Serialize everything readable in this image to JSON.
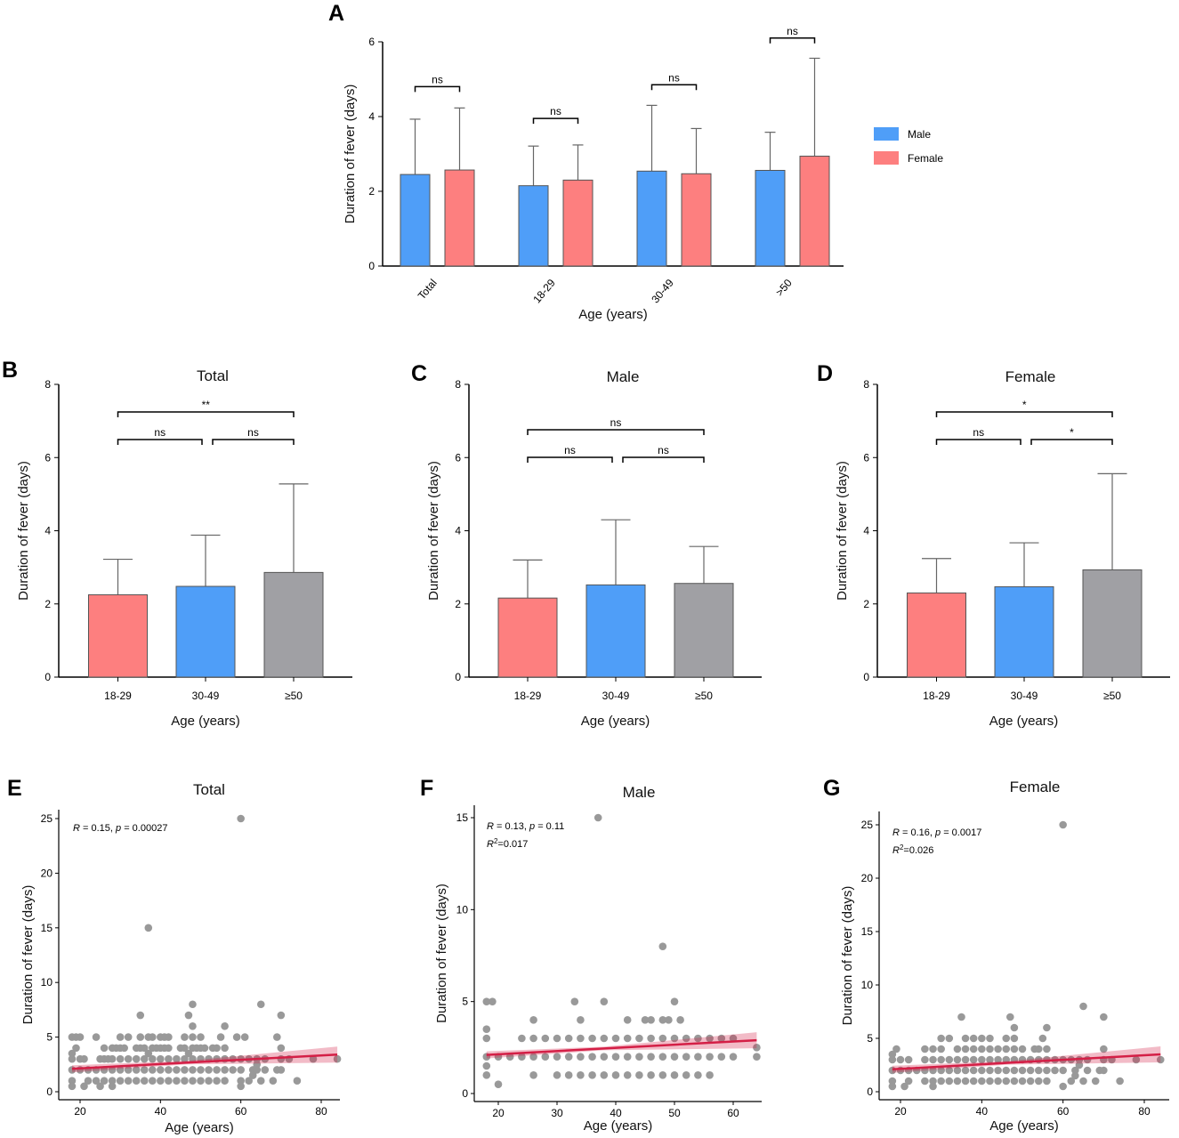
{
  "chart_data": [
    {
      "panel_label": "A",
      "type": "bar",
      "title": "",
      "xlabel": "Age (years)",
      "ylabel": "Duration of fever (days)",
      "ylim": [
        0,
        6
      ],
      "yticks": [
        "0",
        "2",
        "4",
        "6"
      ],
      "categories": [
        "Total",
        "18-29",
        "30-49",
        ">50"
      ],
      "series": [
        {
          "name": "Male",
          "color": "#4f9ef8",
          "values": [
            2.45,
            2.15,
            2.54,
            2.56
          ],
          "error_upper": [
            3.93,
            3.21,
            4.3,
            3.58
          ]
        },
        {
          "name": "Female",
          "color": "#fd7f7f",
          "values": [
            2.57,
            2.3,
            2.47,
            2.94
          ],
          "error_upper": [
            4.23,
            3.24,
            3.68,
            5.56
          ]
        }
      ],
      "comparisons": [
        {
          "category": 0,
          "label": "ns"
        },
        {
          "category": 1,
          "label": "ns"
        },
        {
          "category": 2,
          "label": "ns"
        },
        {
          "category": 3,
          "label": "ns"
        }
      ],
      "legend": "right"
    },
    {
      "panel_label": "B",
      "type": "bar",
      "title": "Total",
      "xlabel": "Age (years)",
      "ylabel": "Duration of fever (days)",
      "ylim": [
        0,
        8
      ],
      "yticks": [
        "0",
        "2",
        "4",
        "6",
        "8"
      ],
      "categories": [
        "18-29",
        "30-49",
        "≥50"
      ],
      "values": [
        2.25,
        2.48,
        2.86
      ],
      "error_upper": [
        3.22,
        3.88,
        5.28
      ],
      "colors": [
        "#fd7f7f",
        "#4f9ef8",
        "#a0a0a4"
      ],
      "comparisons": [
        {
          "from": 0,
          "to": 1,
          "label": "ns"
        },
        {
          "from": 1,
          "to": 2,
          "label": "ns"
        },
        {
          "from": 0,
          "to": 2,
          "label": "**"
        }
      ]
    },
    {
      "panel_label": "C",
      "type": "bar",
      "title": "Male",
      "xlabel": "Age (years)",
      "ylabel": "Duration of fever (days)",
      "ylim": [
        0,
        8
      ],
      "yticks": [
        "0",
        "2",
        "4",
        "6",
        "8"
      ],
      "categories": [
        "18-29",
        "30-49",
        "≥50"
      ],
      "values": [
        2.16,
        2.52,
        2.56
      ],
      "error_upper": [
        3.2,
        4.3,
        3.57
      ],
      "colors": [
        "#fd7f7f",
        "#4f9ef8",
        "#a0a0a4"
      ],
      "comparisons": [
        {
          "from": 0,
          "to": 1,
          "label": "ns"
        },
        {
          "from": 1,
          "to": 2,
          "label": "ns"
        },
        {
          "from": 0,
          "to": 2,
          "label": "ns"
        }
      ]
    },
    {
      "panel_label": "D",
      "type": "bar",
      "title": "Female",
      "xlabel": "Age (years)",
      "ylabel": "Duration of fever (days)",
      "ylim": [
        0,
        8
      ],
      "yticks": [
        "0",
        "2",
        "4",
        "6",
        "8"
      ],
      "categories": [
        "18-29",
        "30-49",
        "≥50"
      ],
      "values": [
        2.3,
        2.47,
        2.93
      ],
      "error_upper": [
        3.24,
        3.67,
        5.56
      ],
      "colors": [
        "#fd7f7f",
        "#4f9ef8",
        "#a0a0a4"
      ],
      "comparisons": [
        {
          "from": 0,
          "to": 1,
          "label": "ns"
        },
        {
          "from": 1,
          "to": 2,
          "label": "*"
        },
        {
          "from": 0,
          "to": 2,
          "label": "*"
        }
      ]
    },
    {
      "panel_label": "E",
      "type": "scatter",
      "title": "Total",
      "xlabel": "Age (years)",
      "ylabel": "Duration of fever (days)",
      "xlim": [
        15,
        86
      ],
      "ylim": [
        0,
        26
      ],
      "xticks": [
        "20",
        "40",
        "60",
        "80"
      ],
      "yticks": [
        "0",
        "5",
        "10",
        "15",
        "20",
        "25"
      ],
      "point_color": "#999999",
      "line_color": "#d41f46",
      "fit": {
        "x": [
          18,
          84
        ],
        "y": [
          2.1,
          3.4
        ]
      },
      "annotation": [
        [
          {
            "t": "R",
            "i": true
          },
          {
            "t": " = 0.15, "
          },
          {
            "t": "p",
            "i": true
          },
          {
            "t": " = 0.00027"
          }
        ]
      ],
      "rows": [
        {
          "y": 5,
          "x": [
            18,
            19,
            20,
            24,
            30,
            32,
            35,
            37,
            38,
            40,
            41,
            42,
            46,
            48,
            50,
            55,
            59,
            61,
            69
          ]
        },
        {
          "y": 4,
          "x": [
            19,
            26,
            28,
            29,
            30,
            31,
            34,
            35,
            36,
            38,
            39,
            40,
            41,
            42,
            45,
            46,
            48,
            49,
            50,
            51,
            53,
            54,
            56,
            70
          ]
        },
        {
          "y": 3,
          "x": [
            18,
            20,
            21,
            25,
            26,
            27,
            28,
            30,
            32,
            34,
            36,
            38,
            40,
            42,
            44,
            46,
            48,
            50,
            52,
            54,
            56,
            58,
            60,
            62,
            64,
            66,
            70,
            72,
            78,
            84
          ]
        },
        {
          "y": 2,
          "x": [
            18,
            20,
            22,
            24,
            26,
            28,
            30,
            32,
            34,
            36,
            38,
            40,
            42,
            44,
            46,
            48,
            50,
            52,
            54,
            56,
            58,
            60,
            63,
            64,
            66,
            69,
            70
          ]
        },
        {
          "y": 1,
          "x": [
            18,
            22,
            24,
            26,
            28,
            30,
            32,
            34,
            36,
            38,
            40,
            42,
            44,
            46,
            48,
            50,
            52,
            54,
            56,
            60,
            62,
            65,
            68,
            74
          ]
        },
        {
          "y": 0.5,
          "x": [
            18,
            21,
            25,
            28,
            60
          ]
        }
      ],
      "points": [
        [
          37,
          15
        ],
        [
          60,
          25
        ],
        [
          35,
          7
        ],
        [
          47,
          7
        ],
        [
          48,
          8
        ],
        [
          48,
          6
        ],
        [
          56,
          6
        ],
        [
          65,
          8
        ],
        [
          70,
          7
        ],
        [
          47,
          3.5
        ],
        [
          37,
          3.5
        ],
        [
          18,
          3.5
        ],
        [
          64,
          2.5
        ],
        [
          63,
          1.5
        ]
      ]
    },
    {
      "panel_label": "F",
      "type": "scatter",
      "title": "Male",
      "xlabel": "Age (years)",
      "ylabel": "Duration of fever (days)",
      "xlim": [
        16,
        65
      ],
      "ylim": [
        0,
        15.5
      ],
      "xticks": [
        "20",
        "30",
        "40",
        "50",
        "60"
      ],
      "yticks": [
        "0",
        "5",
        "10",
        "15"
      ],
      "point_color": "#999999",
      "line_color": "#d41f46",
      "fit": {
        "x": [
          18,
          64
        ],
        "y": [
          2.1,
          2.9
        ]
      },
      "annotation": [
        [
          {
            "t": "R",
            "i": true
          },
          {
            "t": " = 0.13, "
          },
          {
            "t": "p",
            "i": true
          },
          {
            "t": " = 0.11"
          }
        ],
        [
          {
            "t": "R",
            "i": true
          },
          {
            "t": "2",
            "sup": true
          },
          {
            "t": "=0.017"
          }
        ]
      ],
      "rows": [
        {
          "y": 5,
          "x": [
            18,
            19,
            33,
            38,
            50
          ]
        },
        {
          "y": 4,
          "x": [
            26,
            34,
            42,
            45,
            46,
            48,
            49,
            51
          ]
        },
        {
          "y": 3,
          "x": [
            18,
            24,
            26,
            28,
            30,
            32,
            34,
            36,
            38,
            40,
            42,
            44,
            46,
            48,
            50,
            52,
            54,
            56,
            58,
            60
          ]
        },
        {
          "y": 2,
          "x": [
            18,
            20,
            22,
            24,
            26,
            28,
            30,
            32,
            34,
            36,
            38,
            40,
            42,
            44,
            46,
            48,
            50,
            52,
            54,
            56,
            58,
            60,
            64
          ]
        },
        {
          "y": 1,
          "x": [
            18,
            26,
            30,
            32,
            34,
            36,
            38,
            40,
            42,
            44,
            46,
            48,
            50,
            52,
            54,
            56
          ]
        },
        {
          "y": 0.5,
          "x": [
            20
          ]
        }
      ],
      "points": [
        [
          37,
          15
        ],
        [
          48,
          8
        ],
        [
          18,
          3.5
        ],
        [
          18,
          1.5
        ],
        [
          64,
          2.5
        ]
      ]
    },
    {
      "panel_label": "G",
      "type": "scatter",
      "title": "Female",
      "xlabel": "Age (years)",
      "ylabel": "Duration of fever (days)",
      "xlim": [
        15,
        86
      ],
      "ylim": [
        0,
        26
      ],
      "xticks": [
        "20",
        "40",
        "60",
        "80"
      ],
      "yticks": [
        "0",
        "5",
        "10",
        "15",
        "20",
        "25"
      ],
      "point_color": "#999999",
      "line_color": "#d41f46",
      "fit": {
        "x": [
          18,
          84
        ],
        "y": [
          2.1,
          3.5
        ]
      },
      "annotation": [
        [
          {
            "t": "R",
            "i": true
          },
          {
            "t": " = 0.16, "
          },
          {
            "t": "p",
            "i": true
          },
          {
            "t": " = 0.0017"
          }
        ],
        [
          {
            "t": "R",
            "i": true
          },
          {
            "t": "2",
            "sup": true
          },
          {
            "t": "=0.026"
          }
        ]
      ],
      "rows": [
        {
          "y": 5,
          "x": [
            30,
            32,
            36,
            38,
            40,
            42,
            46,
            48,
            55
          ]
        },
        {
          "y": 4,
          "x": [
            19,
            26,
            28,
            30,
            34,
            36,
            38,
            40,
            42,
            44,
            46,
            48,
            50,
            53,
            54,
            56,
            70
          ]
        },
        {
          "y": 3,
          "x": [
            18,
            20,
            22,
            26,
            28,
            30,
            32,
            34,
            36,
            38,
            40,
            42,
            44,
            46,
            48,
            50,
            52,
            54,
            56,
            58,
            60,
            62,
            64,
            66,
            70,
            72,
            78,
            84
          ]
        },
        {
          "y": 2,
          "x": [
            18,
            20,
            22,
            24,
            26,
            28,
            30,
            32,
            34,
            36,
            38,
            40,
            42,
            44,
            46,
            48,
            50,
            52,
            54,
            56,
            58,
            60,
            63,
            66,
            69,
            70
          ]
        },
        {
          "y": 1,
          "x": [
            18,
            22,
            26,
            28,
            30,
            32,
            34,
            36,
            38,
            40,
            42,
            44,
            46,
            48,
            50,
            52,
            54,
            56,
            62,
            65,
            68,
            74
          ]
        },
        {
          "y": 0.5,
          "x": [
            18,
            21,
            28,
            60
          ]
        }
      ],
      "points": [
        [
          60,
          25
        ],
        [
          35,
          7
        ],
        [
          47,
          7
        ],
        [
          56,
          6
        ],
        [
          65,
          8
        ],
        [
          70,
          7
        ],
        [
          48,
          6
        ],
        [
          18,
          3.5
        ],
        [
          64,
          2.5
        ],
        [
          63,
          1.5
        ]
      ]
    }
  ]
}
